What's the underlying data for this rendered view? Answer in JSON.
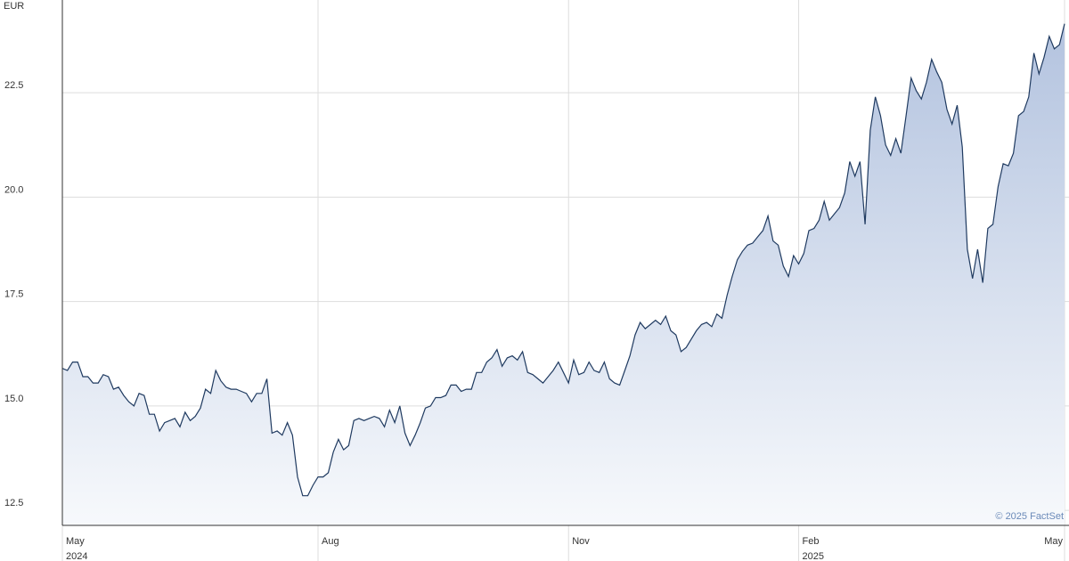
{
  "chart_data": {
    "type": "area",
    "y_unit_label": "EUR",
    "credit": "© 2025 FactSet",
    "color": "#1f3a60",
    "fill_top": "#b3c3df",
    "fill_bottom": "#f7f9fc",
    "grid": true,
    "ylim": [
      12.14,
      24.72
    ],
    "yticks": [
      12.5,
      {
        "value": 15,
        "label": "15.0"
      },
      17.5,
      {
        "value": 20,
        "label": "20.0"
      },
      22.5
    ],
    "xlim": [
      0,
      196
    ],
    "xticks": [
      {
        "value": 0,
        "label": "May"
      },
      {
        "value": 50,
        "label": "Aug"
      },
      {
        "value": 99,
        "label": "Nov"
      },
      {
        "value": 144,
        "label": "Feb"
      },
      {
        "value": 196,
        "label": "May"
      }
    ],
    "x_year_labels": [
      {
        "value": 0,
        "label": "2024"
      },
      {
        "value": 144,
        "label": "2025"
      }
    ],
    "values": [
      15.9,
      15.85,
      16.05,
      16.05,
      15.7,
      15.7,
      15.55,
      15.55,
      15.75,
      15.7,
      15.4,
      15.45,
      15.25,
      15.1,
      15.0,
      15.3,
      15.25,
      14.8,
      14.8,
      14.4,
      14.6,
      14.65,
      14.7,
      14.5,
      14.85,
      14.65,
      14.75,
      14.95,
      15.4,
      15.3,
      15.85,
      15.6,
      15.45,
      15.4,
      15.4,
      15.35,
      15.3,
      15.1,
      15.3,
      15.3,
      15.65,
      14.35,
      14.4,
      14.3,
      14.6,
      14.3,
      13.3,
      12.85,
      12.85,
      13.1,
      13.3,
      13.3,
      13.4,
      13.9,
      14.2,
      13.95,
      14.05,
      14.65,
      14.7,
      14.65,
      14.7,
      14.75,
      14.7,
      14.5,
      14.9,
      14.6,
      15.0,
      14.35,
      14.05,
      14.3,
      14.6,
      14.95,
      15.0,
      15.2,
      15.2,
      15.25,
      15.5,
      15.5,
      15.35,
      15.4,
      15.4,
      15.8,
      15.8,
      16.05,
      16.15,
      16.35,
      15.95,
      16.15,
      16.2,
      16.1,
      16.3,
      15.8,
      15.75,
      15.65,
      15.55,
      15.7,
      15.85,
      16.05,
      15.8,
      15.55,
      16.1,
      15.75,
      15.8,
      16.05,
      15.85,
      15.8,
      16.05,
      15.65,
      15.55,
      15.5,
      15.85,
      16.2,
      16.7,
      17.0,
      16.85,
      16.95,
      17.05,
      16.95,
      17.15,
      16.8,
      16.7,
      16.3,
      16.4,
      16.6,
      16.8,
      16.95,
      17.0,
      16.9,
      17.2,
      17.1,
      17.65,
      18.1,
      18.5,
      18.7,
      18.85,
      18.9,
      19.05,
      19.2,
      19.55,
      18.95,
      18.85,
      18.35,
      18.1,
      18.6,
      18.4,
      18.65,
      19.2,
      19.25,
      19.45,
      19.9,
      19.45,
      19.6,
      19.75,
      20.1,
      20.85,
      20.5,
      20.85,
      19.35,
      21.6,
      22.4,
      21.95,
      21.25,
      21.0,
      21.4,
      21.05,
      21.95,
      22.85,
      22.55,
      22.35,
      22.75,
      23.3,
      23.0,
      22.75,
      22.1,
      21.75,
      22.2,
      21.2,
      18.75,
      18.05,
      18.75,
      17.95,
      19.25,
      19.35,
      20.25,
      20.8,
      20.75,
      21.05,
      21.95,
      22.05,
      22.4,
      23.45,
      22.95,
      23.35,
      23.85,
      23.55,
      23.65,
      24.15
    ]
  }
}
